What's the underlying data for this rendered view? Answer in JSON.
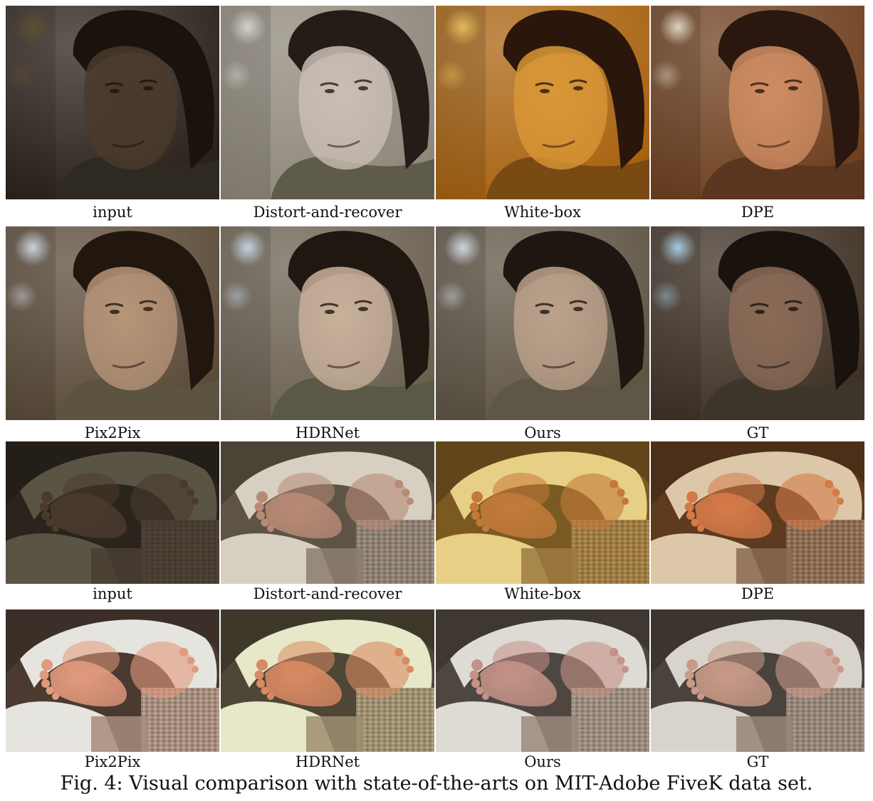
{
  "figure": {
    "caption": "Fig. 4: Visual comparison with state-of-the-arts on MIT-Adobe FiveK data set.",
    "rows": [
      {
        "subject": "portrait",
        "panels": [
          {
            "label": "input",
            "tone": {
              "bg": "#2a2019",
              "skin": "#4a3a2c",
              "hair": "#1a120c",
              "shirt": "#2e2a22",
              "light": "#6b5a3a"
            }
          },
          {
            "label": "Distort-and-recover",
            "tone": {
              "bg": "#8e877a",
              "skin": "#c9beb4",
              "hair": "#241c16",
              "shirt": "#5e5b4a",
              "light": "#f2ede4"
            }
          },
          {
            "label": "White-box",
            "tone": {
              "bg": "#a8620f",
              "skin": "#d99636",
              "hair": "#2a160a",
              "shirt": "#7a4a14",
              "light": "#ffd56a"
            }
          },
          {
            "label": "DPE",
            "tone": {
              "bg": "#6e3f1e",
              "skin": "#cf8c62",
              "hair": "#2a1810",
              "shirt": "#5a3520",
              "light": "#fff0d8"
            }
          }
        ]
      },
      {
        "subject": "portrait",
        "panels": [
          {
            "label": "Pix2Pix",
            "tone": {
              "bg": "#5a4a38",
              "skin": "#b69478",
              "hair": "#22170f",
              "shirt": "#5c5440",
              "light": "#e8f0ff"
            }
          },
          {
            "label": "HDRNet",
            "tone": {
              "bg": "#6a6050",
              "skin": "#c8b09a",
              "hair": "#1f1710",
              "shirt": "#5a5846",
              "light": "#e0f0ff"
            }
          },
          {
            "label": "Ours",
            "tone": {
              "bg": "#5e5444",
              "skin": "#bba18a",
              "hair": "#1e1610",
              "shirt": "#5e5646",
              "light": "#eef4ff"
            }
          },
          {
            "label": "GT",
            "tone": {
              "bg": "#3e3024",
              "skin": "#8a6a56",
              "hair": "#1a120c",
              "shirt": "#3e352a",
              "light": "#bfe6ff"
            }
          }
        ]
      },
      {
        "subject": "baby-foot",
        "panels": [
          {
            "label": "input",
            "tone": {
              "bg": "#2a241c",
              "skin": "#4a3a2e",
              "cloth": "#5a5444",
              "towel": "#4a3e32",
              "shadow": "#1c1814"
            }
          },
          {
            "label": "Distort-and-recover",
            "tone": {
              "bg": "#5e5446",
              "skin": "#b88a76",
              "cloth": "#d6cfc2",
              "towel": "#8c7e70",
              "shadow": "#3a3228"
            }
          },
          {
            "label": "White-box",
            "tone": {
              "bg": "#7a5a22",
              "skin": "#c27a3a",
              "cloth": "#e8cf86",
              "towel": "#9c7a42",
              "shadow": "#4a3214"
            }
          },
          {
            "label": "DPE",
            "tone": {
              "bg": "#5e3a1e",
              "skin": "#d47a48",
              "cloth": "#dcc8a8",
              "towel": "#8a6a52",
              "shadow": "#3a2414"
            }
          }
        ]
      },
      {
        "subject": "baby-foot",
        "panels": [
          {
            "label": "Pix2Pix",
            "tone": {
              "bg": "#4a3a30",
              "skin": "#e29a7e",
              "cloth": "#e6e4de",
              "towel": "#a68c7c",
              "shadow": "#2e2420"
            }
          },
          {
            "label": "HDRNet",
            "tone": {
              "bg": "#4e4636",
              "skin": "#d88a62",
              "cloth": "#e6e8c8",
              "towel": "#9e8e70",
              "shadow": "#2e2a1e"
            }
          },
          {
            "label": "Ours",
            "tone": {
              "bg": "#4e4640",
              "skin": "#c49286",
              "cloth": "#dedad4",
              "towel": "#9a8a7e",
              "shadow": "#2e2824"
            }
          },
          {
            "label": "GT",
            "tone": {
              "bg": "#4a423c",
              "skin": "#c89a88",
              "cloth": "#d8d4cc",
              "towel": "#968478",
              "shadow": "#2c2622"
            }
          }
        ]
      }
    ]
  }
}
